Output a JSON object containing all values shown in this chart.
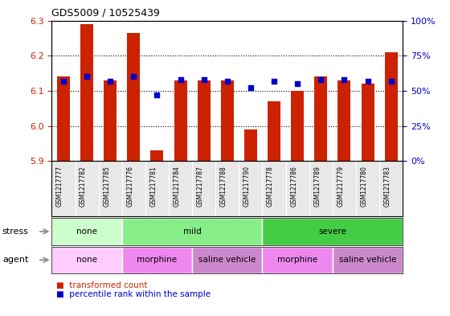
{
  "title": "GDS5009 / 10525439",
  "samples": [
    "GSM1217777",
    "GSM1217782",
    "GSM1217785",
    "GSM1217776",
    "GSM1217781",
    "GSM1217784",
    "GSM1217787",
    "GSM1217788",
    "GSM1217790",
    "GSM1217778",
    "GSM1217786",
    "GSM1217789",
    "GSM1217779",
    "GSM1217780",
    "GSM1217783"
  ],
  "transformed_count": [
    6.14,
    6.29,
    6.13,
    6.265,
    5.93,
    6.13,
    6.13,
    6.13,
    5.99,
    6.07,
    6.1,
    6.14,
    6.13,
    6.12,
    6.21
  ],
  "percentile_rank": [
    57,
    60,
    57,
    60,
    47,
    58,
    58,
    57,
    52,
    57,
    55,
    58,
    58,
    57,
    57
  ],
  "ymin": 5.9,
  "ymax": 6.3,
  "yticks": [
    5.9,
    6.0,
    6.1,
    6.2,
    6.3
  ],
  "right_yticks": [
    0,
    25,
    50,
    75,
    100
  ],
  "right_yticklabels": [
    "0%",
    "25%",
    "50%",
    "75%",
    "100%"
  ],
  "bar_color": "#cc2200",
  "dot_color": "#0000cc",
  "stress_groups": [
    {
      "label": "none",
      "start": 0,
      "end": 3,
      "color": "#ccffcc"
    },
    {
      "label": "mild",
      "start": 3,
      "end": 9,
      "color": "#88ee88"
    },
    {
      "label": "severe",
      "start": 9,
      "end": 15,
      "color": "#44cc44"
    }
  ],
  "agent_groups": [
    {
      "label": "none",
      "start": 0,
      "end": 3,
      "color": "#ffccff"
    },
    {
      "label": "morphine",
      "start": 3,
      "end": 6,
      "color": "#ee88ee"
    },
    {
      "label": "saline vehicle",
      "start": 6,
      "end": 9,
      "color": "#cc88cc"
    },
    {
      "label": "morphine",
      "start": 9,
      "end": 12,
      "color": "#ee88ee"
    },
    {
      "label": "saline vehicle",
      "start": 12,
      "end": 15,
      "color": "#cc88cc"
    }
  ],
  "background_color": "#ffffff",
  "tick_label_color_left": "#cc2200",
  "tick_label_color_right": "#0000cc"
}
